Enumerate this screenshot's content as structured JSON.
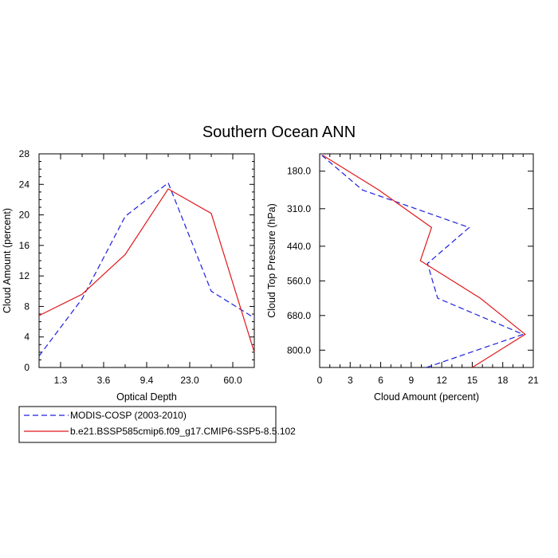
{
  "figure": {
    "title": "Southern Ocean ANN"
  },
  "series_styles": [
    {
      "color": "#1f1fdf",
      "dash": "7,4"
    },
    {
      "color": "#e0181c",
      "dash": ""
    }
  ],
  "chart_data": [
    {
      "type": "line",
      "title": "",
      "xlabel": "Optical Depth",
      "ylabel": "Cloud Amount (percent)",
      "x_tick_labels": [
        "1.3",
        "3.6",
        "9.4",
        "23.0",
        "60.0"
      ],
      "x_tick_positions": [
        1,
        2,
        3,
        4,
        5
      ],
      "xlim": [
        0.5,
        5.5
      ],
      "ylim": [
        0,
        28
      ],
      "y_ticks": [
        0,
        4,
        8,
        12,
        16,
        20,
        24,
        28
      ],
      "series": [
        {
          "name": "MODIS-COSP (2003-2010)",
          "x": [
            0.5,
            1.5,
            2.5,
            3.5,
            4.5,
            5.5
          ],
          "y": [
            1.5,
            9.0,
            19.8,
            24.2,
            10.0,
            6.5
          ]
        },
        {
          "name": "b.e21.BSSP585cmip6.f09_g17.CMIP6-SSP5-8.5.102",
          "x": [
            0.5,
            1.5,
            2.5,
            3.5,
            4.5,
            5.5
          ],
          "y": [
            6.8,
            9.6,
            14.8,
            23.4,
            20.2,
            2.0
          ]
        }
      ]
    },
    {
      "type": "line",
      "title": "",
      "xlabel": "Cloud Amount (percent)",
      "ylabel": "Cloud Top Pressure (hPa)",
      "xlim": [
        0,
        21
      ],
      "x_ticks": [
        0,
        3,
        6,
        9,
        12,
        15,
        18,
        21
      ],
      "ylim": [
        120,
        860
      ],
      "y_ticks": [
        180,
        310,
        440,
        560,
        680,
        800
      ],
      "y_tick_labels": [
        "180.0",
        "310.0",
        "440.0",
        "560.0",
        "680.0",
        "800.0"
      ],
      "y_reversed": true,
      "series": [
        {
          "name": "MODIS-COSP (2003-2010)",
          "pressure": [
            125,
            245,
            375,
            500,
            620,
            745,
            860
          ],
          "amount": [
            0.2,
            4.2,
            14.7,
            10.6,
            11.6,
            20.0,
            10.5
          ]
        },
        {
          "name": "b.e21.BSSP585cmip6.f09_g17.CMIP6-SSP5-8.5.102",
          "pressure": [
            125,
            245,
            375,
            490,
            620,
            745,
            860
          ],
          "amount": [
            0.3,
            5.8,
            11.0,
            9.9,
            15.8,
            20.2,
            15.0
          ]
        }
      ]
    }
  ]
}
